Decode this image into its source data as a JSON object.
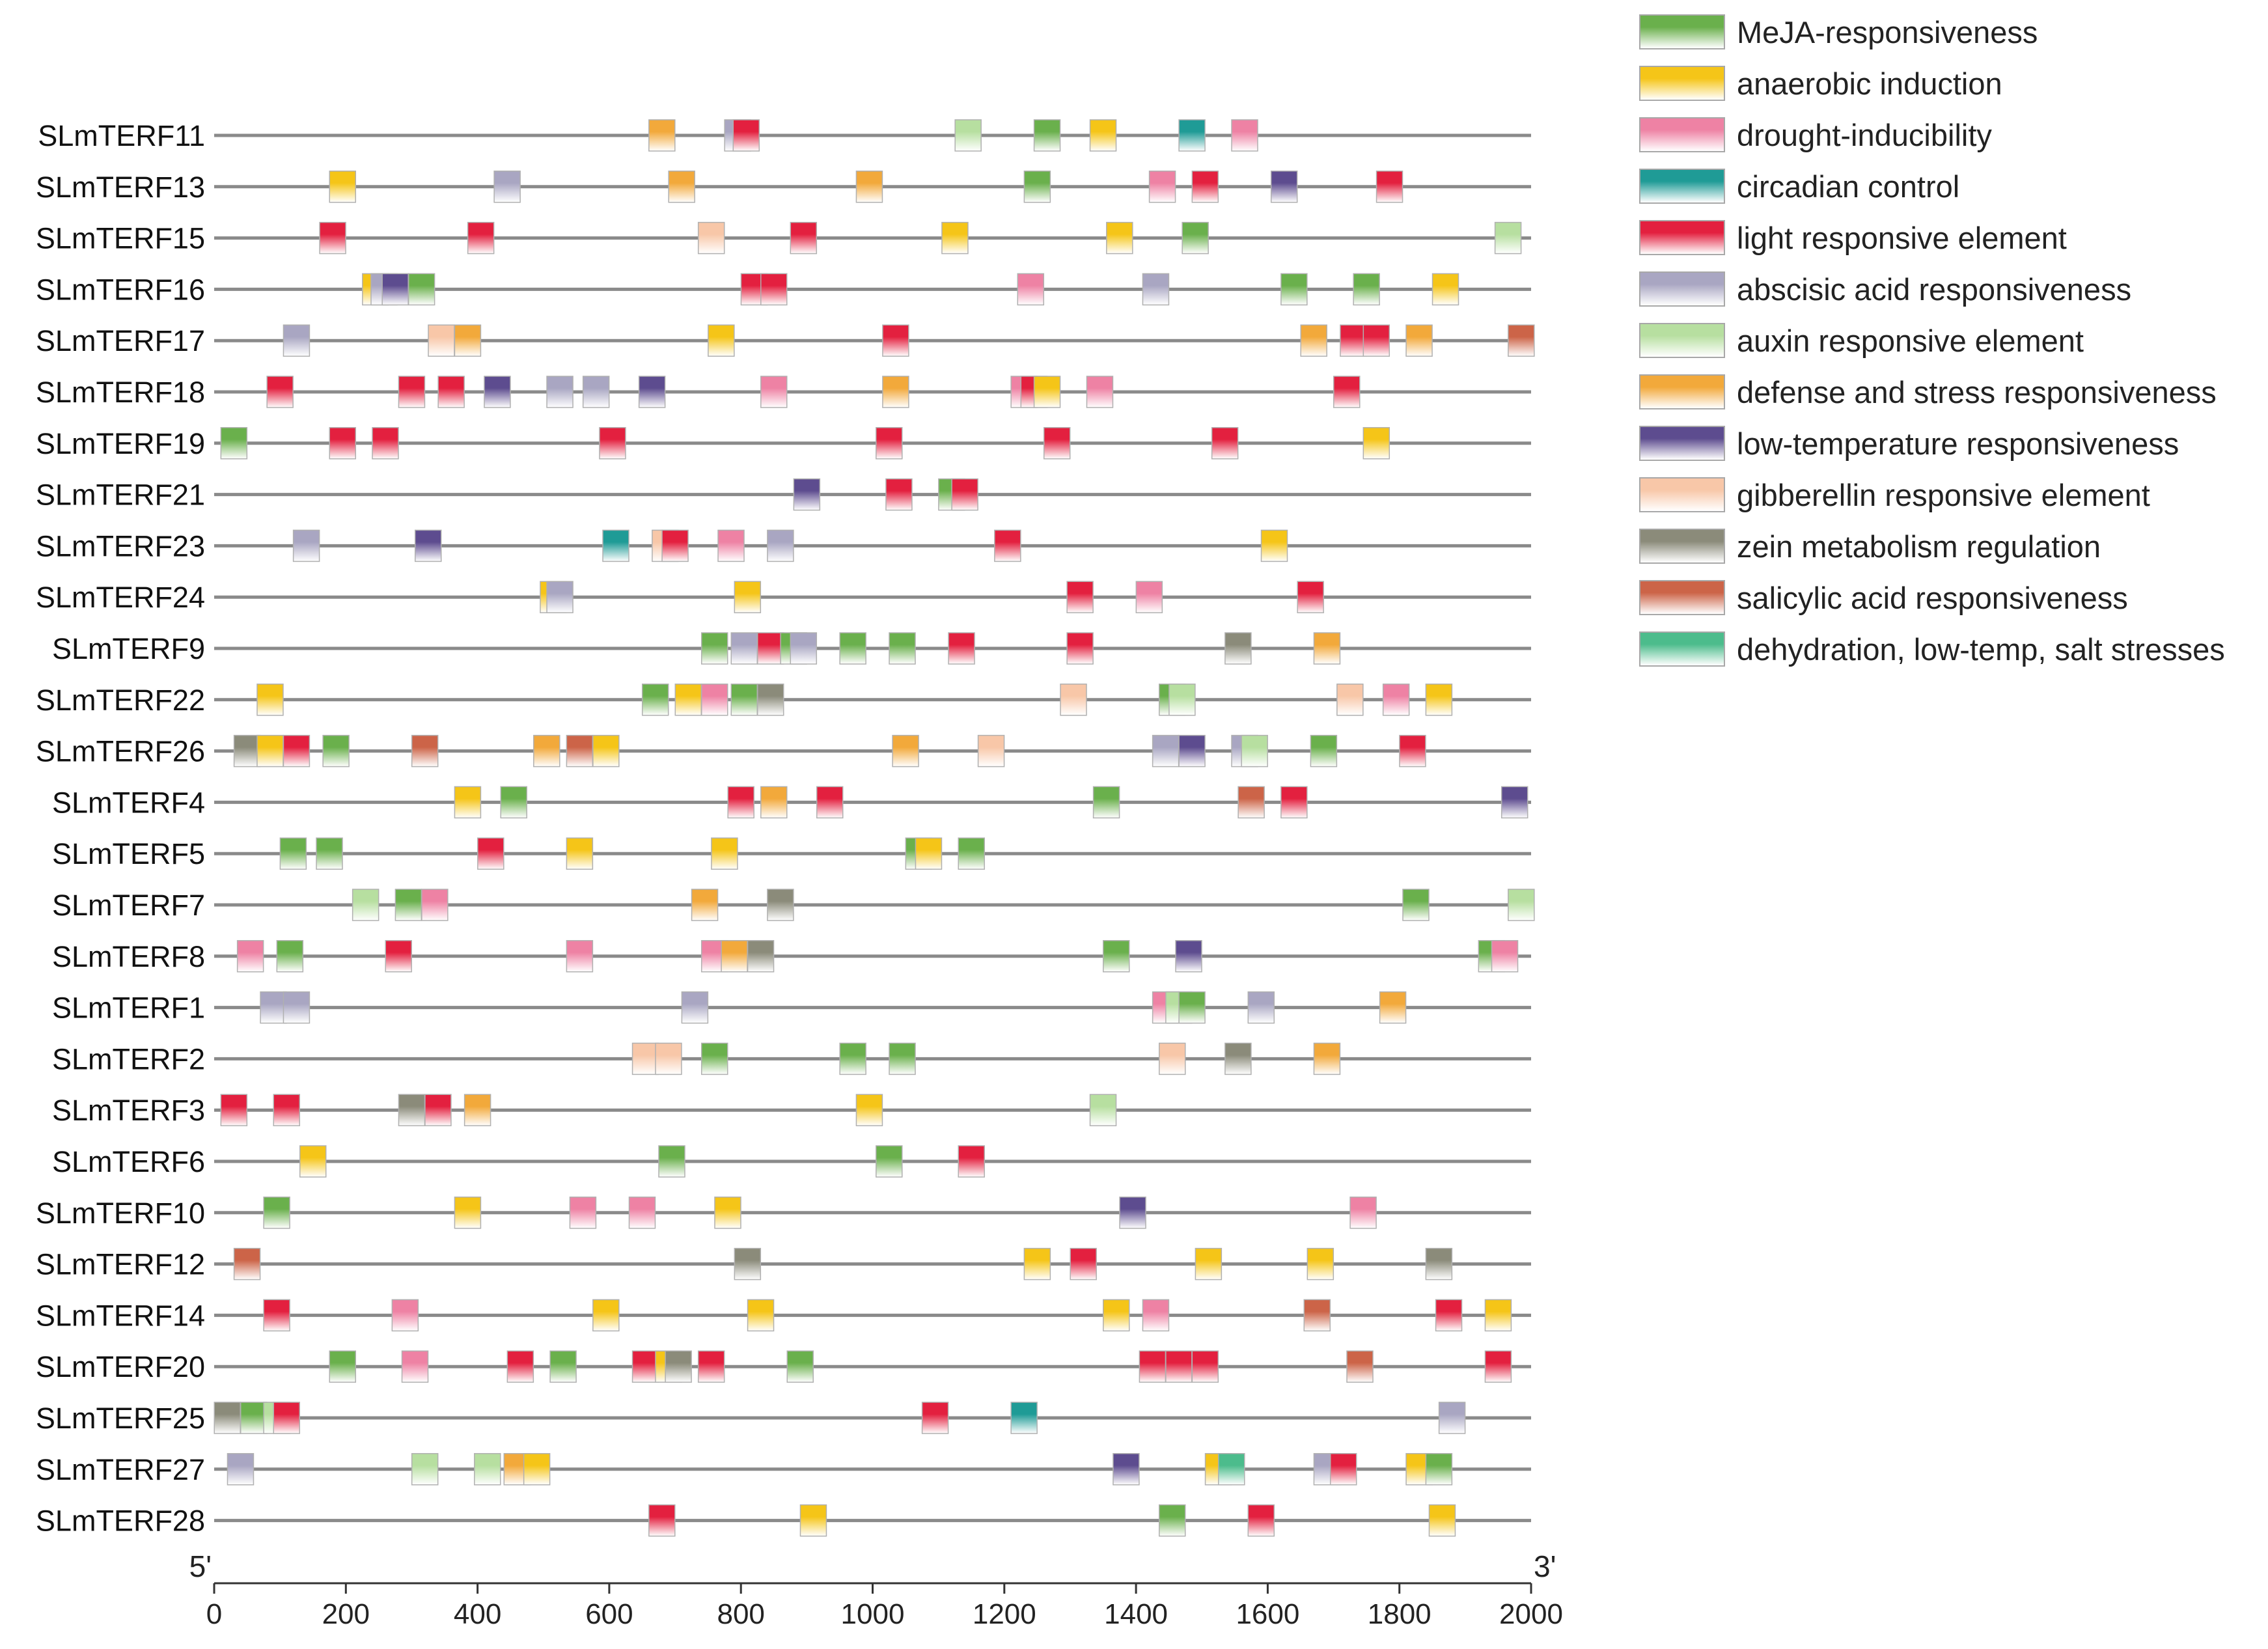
{
  "chart_data": {
    "type": "motif-map",
    "title": "",
    "xlabel": "",
    "ylabel": "",
    "x_range": [
      0,
      2000
    ],
    "x_ticks": [
      "0",
      "200",
      "400",
      "600",
      "800",
      "1000",
      "1200",
      "1400",
      "1600",
      "1800",
      "2000"
    ],
    "end_labels": {
      "left": "5'",
      "right": "3'"
    },
    "legend": [
      {
        "key": "meja",
        "name": "MeJA-responsiveness",
        "color": "#6ab04c"
      },
      {
        "key": "anaer",
        "name": "anaerobic induction",
        "color": "#f5c518"
      },
      {
        "key": "drought",
        "name": "drought-inducibility",
        "color": "#ee82a4"
      },
      {
        "key": "circ",
        "name": "circadian control",
        "color": "#1f9b96"
      },
      {
        "key": "light",
        "name": "light responsive element",
        "color": "#e3203f"
      },
      {
        "key": "aba",
        "name": "abscisic acid responsiveness",
        "color": "#a9a6c2"
      },
      {
        "key": "auxin",
        "name": "auxin responsive element",
        "color": "#b7dfa0"
      },
      {
        "key": "defense",
        "name": "defense and stress responsiveness",
        "color": "#f2a93b"
      },
      {
        "key": "lowtemp",
        "name": "low-temperature responsiveness",
        "color": "#5d4c8f"
      },
      {
        "key": "gib",
        "name": "gibberellin responsive element",
        "color": "#f8c7a8"
      },
      {
        "key": "zein",
        "name": "zein metabolism regulation",
        "color": "#8b8b7a"
      },
      {
        "key": "sali",
        "name": "salicylic acid responsiveness",
        "color": "#cc6448"
      },
      {
        "key": "dehyd",
        "name": "dehydration, low-temp, salt stresses",
        "color": "#4cbc8c"
      }
    ],
    "genes": [
      {
        "name": "SLmTERF11",
        "motifs": [
          [
            "defense",
            680
          ],
          [
            "aba",
            795
          ],
          [
            "light",
            808
          ],
          [
            "auxin",
            1145
          ],
          [
            "meja",
            1265
          ],
          [
            "anaer",
            1350
          ],
          [
            "circ",
            1485
          ],
          [
            "drought",
            1565
          ]
        ]
      },
      {
        "name": "SLmTERF13",
        "motifs": [
          [
            "anaer",
            195
          ],
          [
            "aba",
            445
          ],
          [
            "defense",
            710
          ],
          [
            "defense",
            995
          ],
          [
            "meja",
            1250
          ],
          [
            "drought",
            1440
          ],
          [
            "light",
            1505
          ],
          [
            "lowtemp",
            1625
          ],
          [
            "light",
            1785
          ]
        ]
      },
      {
        "name": "SLmTERF15",
        "motifs": [
          [
            "light",
            180
          ],
          [
            "light",
            405
          ],
          [
            "gib",
            755
          ],
          [
            "light",
            895
          ],
          [
            "anaer",
            1125
          ],
          [
            "anaer",
            1375
          ],
          [
            "meja",
            1490
          ],
          [
            "auxin",
            1965
          ]
        ]
      },
      {
        "name": "SLmTERF16",
        "motifs": [
          [
            "anaer",
            245
          ],
          [
            "aba",
            258
          ],
          [
            "lowtemp",
            275
          ],
          [
            "meja",
            315
          ],
          [
            "light",
            820
          ],
          [
            "light",
            850
          ],
          [
            "drought",
            1240
          ],
          [
            "aba",
            1430
          ],
          [
            "meja",
            1640
          ],
          [
            "meja",
            1750
          ],
          [
            "anaer",
            1870
          ]
        ]
      },
      {
        "name": "SLmTERF17",
        "motifs": [
          [
            "aba",
            125
          ],
          [
            "gib",
            345
          ],
          [
            "defense",
            385
          ],
          [
            "anaer",
            770
          ],
          [
            "light",
            1035
          ],
          [
            "defense",
            1670
          ],
          [
            "light",
            1730
          ],
          [
            "light",
            1765
          ],
          [
            "defense",
            1830
          ],
          [
            "sali",
            1985
          ]
        ]
      },
      {
        "name": "SLmTERF18",
        "motifs": [
          [
            "light",
            100
          ],
          [
            "light",
            300
          ],
          [
            "light",
            360
          ],
          [
            "lowtemp",
            430
          ],
          [
            "aba",
            525
          ],
          [
            "aba",
            580
          ],
          [
            "lowtemp",
            665
          ],
          [
            "drought",
            850
          ],
          [
            "defense",
            1035
          ],
          [
            "drought",
            1230
          ],
          [
            "light",
            1245
          ],
          [
            "anaer",
            1265
          ],
          [
            "drought",
            1345
          ],
          [
            "light",
            1720
          ]
        ]
      },
      {
        "name": "SLmTERF19",
        "motifs": [
          [
            "meja",
            30
          ],
          [
            "light",
            195
          ],
          [
            "light",
            260
          ],
          [
            "light",
            605
          ],
          [
            "light",
            1025
          ],
          [
            "light",
            1280
          ],
          [
            "light",
            1535
          ],
          [
            "anaer",
            1765
          ]
        ]
      },
      {
        "name": "SLmTERF21",
        "motifs": [
          [
            "lowtemp",
            900
          ],
          [
            "light",
            1040
          ],
          [
            "meja",
            1120
          ],
          [
            "light",
            1140
          ]
        ]
      },
      {
        "name": "SLmTERF23",
        "motifs": [
          [
            "aba",
            140
          ],
          [
            "lowtemp",
            325
          ],
          [
            "circ",
            610
          ],
          [
            "gib",
            685
          ],
          [
            "light",
            700
          ],
          [
            "drought",
            785
          ],
          [
            "aba",
            860
          ],
          [
            "light",
            1205
          ],
          [
            "anaer",
            1610
          ]
        ]
      },
      {
        "name": "SLmTERF24",
        "motifs": [
          [
            "anaer",
            515
          ],
          [
            "aba",
            525
          ],
          [
            "anaer",
            810
          ],
          [
            "light",
            1315
          ],
          [
            "drought",
            1420
          ],
          [
            "light",
            1665
          ]
        ]
      },
      {
        "name": "SLmTERF9",
        "motifs": [
          [
            "meja",
            760
          ],
          [
            "aba",
            805
          ],
          [
            "light",
            845
          ],
          [
            "meja",
            880
          ],
          [
            "aba",
            895
          ],
          [
            "meja",
            970
          ],
          [
            "meja",
            1045
          ],
          [
            "light",
            1135
          ],
          [
            "light",
            1315
          ],
          [
            "zein",
            1555
          ],
          [
            "defense",
            1690
          ]
        ]
      },
      {
        "name": "SLmTERF22",
        "motifs": [
          [
            "anaer",
            85
          ],
          [
            "meja",
            670
          ],
          [
            "anaer",
            720
          ],
          [
            "drought",
            760
          ],
          [
            "meja",
            805
          ],
          [
            "zein",
            845
          ],
          [
            "gib",
            1305
          ],
          [
            "meja",
            1455
          ],
          [
            "auxin",
            1470
          ],
          [
            "gib",
            1725
          ],
          [
            "drought",
            1795
          ],
          [
            "anaer",
            1860
          ]
        ]
      },
      {
        "name": "SLmTERF26",
        "motifs": [
          [
            "zein",
            50
          ],
          [
            "anaer",
            85
          ],
          [
            "light",
            125
          ],
          [
            "meja",
            185
          ],
          [
            "sali",
            320
          ],
          [
            "defense",
            505
          ],
          [
            "sali",
            555
          ],
          [
            "anaer",
            595
          ],
          [
            "defense",
            1050
          ],
          [
            "gib",
            1180
          ],
          [
            "aba",
            1445
          ],
          [
            "lowtemp",
            1485
          ],
          [
            "aba",
            1565
          ],
          [
            "auxin",
            1580
          ],
          [
            "meja",
            1685
          ],
          [
            "light",
            1820
          ]
        ]
      },
      {
        "name": "SLmTERF4",
        "motifs": [
          [
            "anaer",
            385
          ],
          [
            "meja",
            455
          ],
          [
            "light",
            800
          ],
          [
            "defense",
            850
          ],
          [
            "light",
            935
          ],
          [
            "meja",
            1355
          ],
          [
            "sali",
            1575
          ],
          [
            "light",
            1640
          ],
          [
            "lowtemp",
            1975
          ]
        ]
      },
      {
        "name": "SLmTERF5",
        "motifs": [
          [
            "meja",
            120
          ],
          [
            "meja",
            175
          ],
          [
            "light",
            420
          ],
          [
            "anaer",
            555
          ],
          [
            "anaer",
            775
          ],
          [
            "meja",
            1070
          ],
          [
            "anaer",
            1085
          ],
          [
            "meja",
            1150
          ]
        ]
      },
      {
        "name": "SLmTERF7",
        "motifs": [
          [
            "auxin",
            230
          ],
          [
            "meja",
            295
          ],
          [
            "drought",
            335
          ],
          [
            "defense",
            745
          ],
          [
            "zein",
            860
          ],
          [
            "meja",
            1825
          ],
          [
            "auxin",
            1985
          ]
        ]
      },
      {
        "name": "SLmTERF8",
        "motifs": [
          [
            "drought",
            55
          ],
          [
            "meja",
            115
          ],
          [
            "light",
            280
          ],
          [
            "drought",
            555
          ],
          [
            "drought",
            760
          ],
          [
            "defense",
            790
          ],
          [
            "zein",
            830
          ],
          [
            "meja",
            1370
          ],
          [
            "lowtemp",
            1480
          ],
          [
            "meja",
            1940
          ],
          [
            "drought",
            1960
          ]
        ]
      },
      {
        "name": "SLmTERF1",
        "motifs": [
          [
            "aba",
            90
          ],
          [
            "aba",
            125
          ],
          [
            "aba",
            730
          ],
          [
            "drought",
            1445
          ],
          [
            "auxin",
            1465
          ],
          [
            "meja",
            1485
          ],
          [
            "aba",
            1590
          ],
          [
            "defense",
            1790
          ]
        ]
      },
      {
        "name": "SLmTERF2",
        "motifs": [
          [
            "gib",
            655
          ],
          [
            "gib",
            690
          ],
          [
            "meja",
            760
          ],
          [
            "meja",
            970
          ],
          [
            "meja",
            1045
          ],
          [
            "gib",
            1455
          ],
          [
            "zein",
            1555
          ],
          [
            "defense",
            1690
          ]
        ]
      },
      {
        "name": "SLmTERF3",
        "motifs": [
          [
            "light",
            30
          ],
          [
            "light",
            110
          ],
          [
            "zein",
            300
          ],
          [
            "light",
            340
          ],
          [
            "defense",
            400
          ],
          [
            "anaer",
            995
          ],
          [
            "auxin",
            1350
          ]
        ]
      },
      {
        "name": "SLmTERF6",
        "motifs": [
          [
            "anaer",
            150
          ],
          [
            "meja",
            695
          ],
          [
            "meja",
            1025
          ],
          [
            "light",
            1150
          ]
        ]
      },
      {
        "name": "SLmTERF10",
        "motifs": [
          [
            "meja",
            95
          ],
          [
            "anaer",
            385
          ],
          [
            "drought",
            560
          ],
          [
            "drought",
            650
          ],
          [
            "anaer",
            780
          ],
          [
            "lowtemp",
            1395
          ],
          [
            "drought",
            1745
          ]
        ]
      },
      {
        "name": "SLmTERF12",
        "motifs": [
          [
            "sali",
            50
          ],
          [
            "zein",
            810
          ],
          [
            "anaer",
            1250
          ],
          [
            "light",
            1320
          ],
          [
            "anaer",
            1510
          ],
          [
            "anaer",
            1680
          ],
          [
            "zein",
            1860
          ]
        ]
      },
      {
        "name": "SLmTERF14",
        "motifs": [
          [
            "light",
            95
          ],
          [
            "drought",
            290
          ],
          [
            "anaer",
            595
          ],
          [
            "anaer",
            830
          ],
          [
            "anaer",
            1370
          ],
          [
            "drought",
            1430
          ],
          [
            "sali",
            1675
          ],
          [
            "light",
            1875
          ],
          [
            "anaer",
            1950
          ]
        ]
      },
      {
        "name": "SLmTERF20",
        "motifs": [
          [
            "meja",
            195
          ],
          [
            "drought",
            305
          ],
          [
            "light",
            465
          ],
          [
            "meja",
            530
          ],
          [
            "light",
            655
          ],
          [
            "anaer",
            690
          ],
          [
            "zein",
            705
          ],
          [
            "light",
            755
          ],
          [
            "meja",
            890
          ],
          [
            "light",
            1425
          ],
          [
            "light",
            1465
          ],
          [
            "light",
            1505
          ],
          [
            "sali",
            1740
          ],
          [
            "light",
            1950
          ]
        ]
      },
      {
        "name": "SLmTERF25",
        "motifs": [
          [
            "zein",
            20
          ],
          [
            "meja",
            60
          ],
          [
            "auxin",
            95
          ],
          [
            "light",
            110
          ],
          [
            "light",
            1095
          ],
          [
            "circ",
            1230
          ],
          [
            "aba",
            1880
          ]
        ]
      },
      {
        "name": "SLmTERF27",
        "motifs": [
          [
            "aba",
            40
          ],
          [
            "auxin",
            320
          ],
          [
            "auxin",
            415
          ],
          [
            "defense",
            460
          ],
          [
            "anaer",
            490
          ],
          [
            "lowtemp",
            1385
          ],
          [
            "anaer",
            1525
          ],
          [
            "dehyd",
            1545
          ],
          [
            "aba",
            1690
          ],
          [
            "light",
            1715
          ],
          [
            "anaer",
            1830
          ],
          [
            "meja",
            1860
          ]
        ]
      },
      {
        "name": "SLmTERF28",
        "motifs": [
          [
            "light",
            680
          ],
          [
            "anaer",
            910
          ],
          [
            "meja",
            1455
          ],
          [
            "light",
            1590
          ],
          [
            "anaer",
            1865
          ]
        ]
      }
    ]
  }
}
